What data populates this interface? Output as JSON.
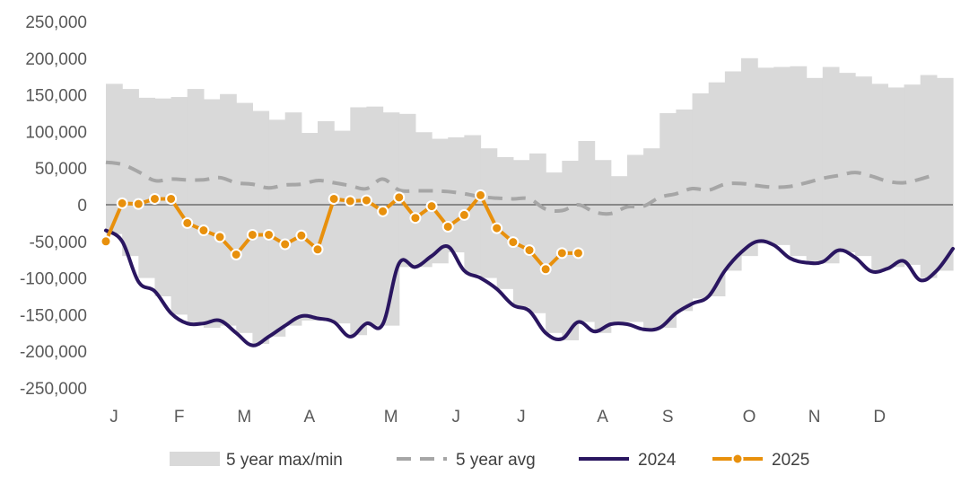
{
  "chart_data": {
    "type": "line",
    "title": "",
    "xlabel": "",
    "ylabel": "",
    "ylim": [
      -250000,
      250000
    ],
    "y_ticks": [
      250000,
      200000,
      150000,
      100000,
      50000,
      0,
      -50000,
      -100000,
      -150000,
      -200000,
      -250000
    ],
    "y_tick_labels": [
      "250,000",
      "200,000",
      "150,000",
      "100,000",
      "50,000",
      "0",
      "-50,000",
      "-100,000",
      "-150,000",
      "-200,000",
      "-250,000"
    ],
    "x_range": [
      1,
      53
    ],
    "x_ticks": [
      {
        "week": 1,
        "label": "J"
      },
      {
        "week": 5,
        "label": "F"
      },
      {
        "week": 9,
        "label": "M"
      },
      {
        "week": 13,
        "label": "A"
      },
      {
        "week": 18,
        "label": "M"
      },
      {
        "week": 22,
        "label": "J"
      },
      {
        "week": 26,
        "label": "J"
      },
      {
        "week": 31,
        "label": "A"
      },
      {
        "week": 35,
        "label": "S"
      },
      {
        "week": 40,
        "label": "O"
      },
      {
        "week": 44,
        "label": "N"
      },
      {
        "week": 48,
        "label": "D"
      }
    ],
    "grid": false,
    "legend": {
      "position": "bottom",
      "entries": [
        {
          "name": "5 year max/min",
          "type": "band",
          "color": "#d9d9d9"
        },
        {
          "name": "5 year avg",
          "type": "dashed-line",
          "color": "#a6a6a6"
        },
        {
          "name": "2024",
          "type": "line",
          "color": "#2a1660"
        },
        {
          "name": "2025",
          "type": "line-marker",
          "color": "#e8900c"
        }
      ]
    },
    "band": {
      "name": "5 year max/min",
      "color": "#d9d9d9",
      "max": [
        165000,
        158000,
        146000,
        145000,
        147000,
        158000,
        144000,
        151000,
        139000,
        128000,
        116000,
        126000,
        98000,
        114000,
        101000,
        133000,
        134000,
        126000,
        124000,
        99000,
        90000,
        92000,
        95000,
        77000,
        65000,
        61000,
        70000,
        44000,
        60000,
        87000,
        61000,
        39000,
        68000,
        77000,
        125000,
        130000,
        152000,
        167000,
        182000,
        200000,
        187000,
        188000,
        189000,
        173000,
        188000,
        180000,
        175000,
        165000,
        160000,
        164000,
        177000,
        173000
      ],
      "min": [
        -40000,
        -70000,
        -100000,
        -125000,
        -150000,
        -165000,
        -168000,
        -165000,
        -175000,
        -190000,
        -180000,
        -165000,
        -158000,
        -158000,
        -162000,
        -178000,
        -165000,
        -165000,
        -85000,
        -85000,
        -80000,
        -65000,
        -95000,
        -100000,
        -115000,
        -140000,
        -148000,
        -175000,
        -185000,
        -160000,
        -175000,
        -160000,
        -160000,
        -170000,
        -168000,
        -145000,
        -128000,
        -125000,
        -90000,
        -70000,
        -53000,
        -55000,
        -70000,
        -80000,
        -80000,
        -65000,
        -70000,
        -90000,
        -85000,
        -82000,
        -100000,
        -90000
      ]
    },
    "series": [
      {
        "name": "5 year avg",
        "style": "dashed",
        "color": "#a6a6a6",
        "x": [
          1,
          2,
          3,
          4,
          5,
          6,
          7,
          8,
          9,
          10,
          11,
          12,
          13,
          14,
          15,
          16,
          17,
          18,
          19,
          20,
          21,
          22,
          23,
          24,
          25,
          26,
          27,
          28,
          29,
          30,
          31,
          32,
          33,
          34,
          35,
          36,
          37,
          38,
          39,
          40,
          41,
          42,
          43,
          44,
          45,
          46,
          47,
          48,
          49,
          50,
          51,
          52
        ],
        "values": [
          58000,
          55000,
          45000,
          33000,
          35000,
          34000,
          34000,
          37000,
          30000,
          28000,
          23000,
          27000,
          28000,
          33000,
          30000,
          26000,
          22000,
          35000,
          20000,
          19000,
          19000,
          18000,
          15000,
          11000,
          9000,
          8000,
          8000,
          -6000,
          -8000,
          0,
          -10000,
          -12000,
          -3000,
          -2000,
          10000,
          15000,
          22000,
          20000,
          28000,
          29000,
          26000,
          24000,
          25000,
          30000,
          36000,
          40000,
          44000,
          39000,
          32000,
          30000,
          35000,
          42000
        ]
      },
      {
        "name": "2024",
        "style": "solid",
        "color": "#2a1660",
        "x": [
          1,
          2,
          3,
          4,
          5,
          6,
          7,
          8,
          9,
          10,
          11,
          12,
          13,
          14,
          15,
          16,
          17,
          18,
          19,
          20,
          21,
          22,
          23,
          24,
          25,
          26,
          27,
          28,
          29,
          30,
          31,
          32,
          33,
          34,
          35,
          36,
          37,
          38,
          39,
          40,
          41,
          42,
          43,
          44,
          45,
          46,
          47,
          48,
          49,
          50,
          51,
          52,
          53
        ],
        "values": [
          -35000,
          -50000,
          -105000,
          -118000,
          -148000,
          -162000,
          -162000,
          -158000,
          -175000,
          -192000,
          -180000,
          -165000,
          -152000,
          -155000,
          -160000,
          -180000,
          -162000,
          -163000,
          -80000,
          -85000,
          -70000,
          -57000,
          -90000,
          -100000,
          -115000,
          -137000,
          -145000,
          -175000,
          -183000,
          -160000,
          -173000,
          -163000,
          -163000,
          -170000,
          -168000,
          -148000,
          -135000,
          -125000,
          -90000,
          -65000,
          -50000,
          -55000,
          -73000,
          -79000,
          -78000,
          -62000,
          -72000,
          -91000,
          -87000,
          -77000,
          -103000,
          -90000,
          -60000
        ]
      },
      {
        "name": "2025",
        "style": "line-marker",
        "color": "#e8900c",
        "x": [
          1,
          2,
          3,
          4,
          5,
          6,
          7,
          8,
          9,
          10,
          11,
          12,
          13,
          14,
          15,
          16,
          17,
          18,
          19,
          20,
          21,
          22,
          23,
          24,
          25,
          26,
          27,
          28,
          29,
          30
        ],
        "values": [
          -50000,
          2000,
          1000,
          8000,
          8000,
          -25000,
          -35000,
          -44000,
          -68000,
          -41000,
          -41000,
          -54000,
          -42000,
          -61000,
          8000,
          5000,
          6000,
          -9000,
          10000,
          -18000,
          -2000,
          -30000,
          -14000,
          13000,
          -32000,
          -51000,
          -62000,
          -88000,
          -66000,
          -66000
        ]
      }
    ]
  }
}
